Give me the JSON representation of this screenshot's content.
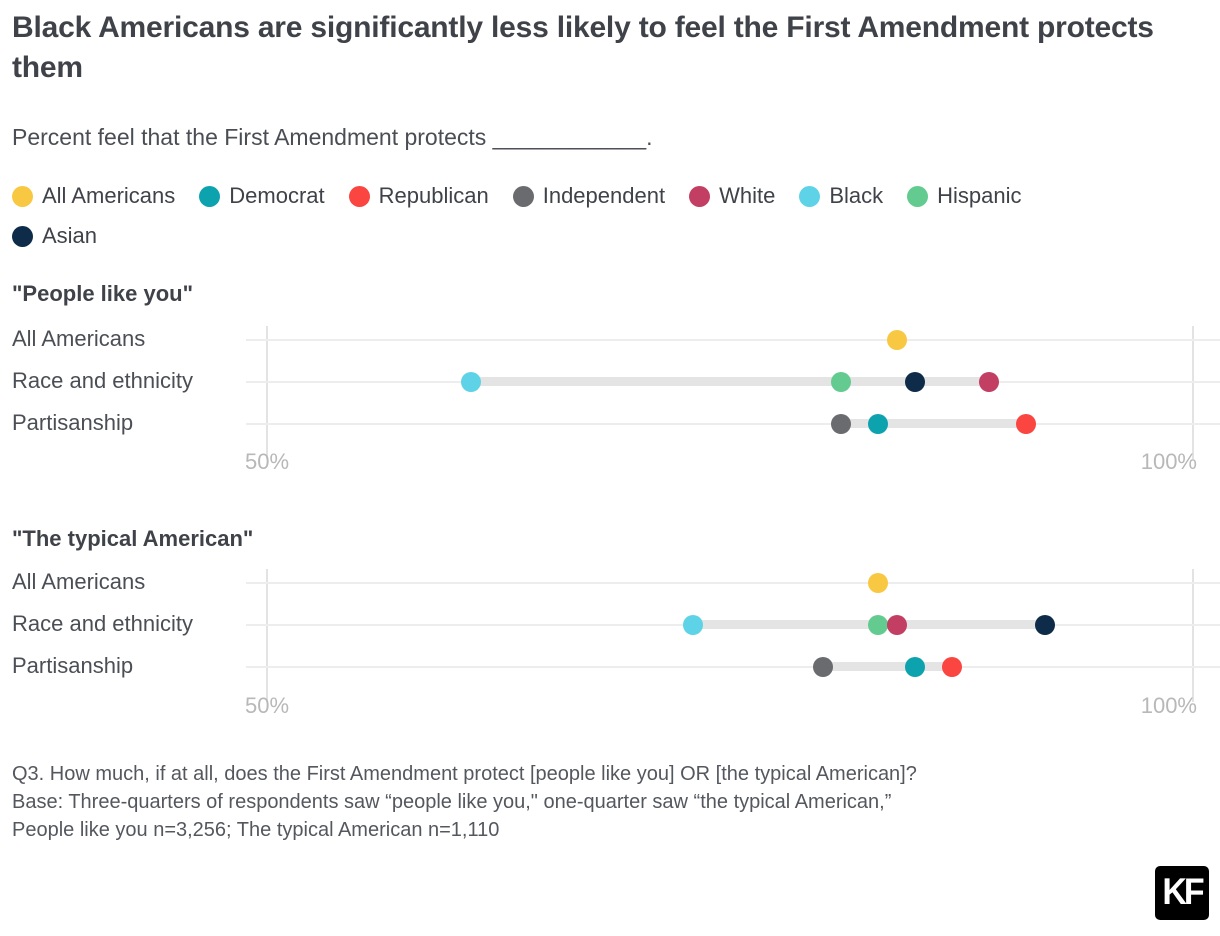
{
  "header": {
    "title": "Black Americans are significantly less likely to feel the First Amendment protects them",
    "subtitle": "Percent feel that the First Amendment protects ____________."
  },
  "legend": {
    "items": [
      {
        "name": "all-americans",
        "label": "All Americans",
        "color": "#F8C843"
      },
      {
        "name": "democrat",
        "label": "Democrat",
        "color": "#0CA3AE"
      },
      {
        "name": "republican",
        "label": "Republican",
        "color": "#FA4541"
      },
      {
        "name": "independent",
        "label": "Independent",
        "color": "#6A6B6E"
      },
      {
        "name": "white",
        "label": "White",
        "color": "#C23E63"
      },
      {
        "name": "black",
        "label": "Black",
        "color": "#5ED3E7"
      },
      {
        "name": "hispanic",
        "label": "Hispanic",
        "color": "#63CB8F"
      },
      {
        "name": "asian",
        "label": "Asian",
        "color": "#0E2C4A"
      }
    ]
  },
  "chart_data": {
    "type": "dot-plot",
    "xlim": [
      50,
      100
    ],
    "x_tick_labels": [
      "50%",
      "100%"
    ],
    "grid": "on",
    "group_colors": {
      "All Americans": "#F8C843",
      "Democrat": "#0CA3AE",
      "Republican": "#FA4541",
      "Independent": "#6A6B6E",
      "White": "#C23E63",
      "Black": "#5ED3E7",
      "Hispanic": "#63CB8F",
      "Asian": "#0E2C4A"
    },
    "sections": [
      {
        "title": "\"People like you\"",
        "rows": [
          {
            "label": "All Americans",
            "points": [
              {
                "group": "All Americans",
                "value": 84
              }
            ]
          },
          {
            "label": "Race and ethnicity",
            "range": [
              61,
              89
            ],
            "points": [
              {
                "group": "Black",
                "value": 61
              },
              {
                "group": "Hispanic",
                "value": 81
              },
              {
                "group": "Asian",
                "value": 85
              },
              {
                "group": "White",
                "value": 89
              }
            ]
          },
          {
            "label": "Partisanship",
            "range": [
              81,
              91
            ],
            "points": [
              {
                "group": "Independent",
                "value": 81
              },
              {
                "group": "Democrat",
                "value": 83
              },
              {
                "group": "Republican",
                "value": 91
              }
            ]
          }
        ]
      },
      {
        "title": "\"The typical American\"",
        "rows": [
          {
            "label": "All Americans",
            "points": [
              {
                "group": "All Americans",
                "value": 83
              }
            ]
          },
          {
            "label": "Race and ethnicity",
            "range": [
              73,
              92
            ],
            "points": [
              {
                "group": "Black",
                "value": 73
              },
              {
                "group": "Hispanic",
                "value": 83
              },
              {
                "group": "White",
                "value": 84
              },
              {
                "group": "Asian",
                "value": 92
              }
            ]
          },
          {
            "label": "Partisanship",
            "range": [
              80,
              87
            ],
            "points": [
              {
                "group": "Independent",
                "value": 80
              },
              {
                "group": "Democrat",
                "value": 85
              },
              {
                "group": "Republican",
                "value": 87
              }
            ]
          }
        ]
      }
    ]
  },
  "footer": {
    "line1": "Q3. How much, if at all, does the First Amendment protect [people like you] OR [the typical American]?",
    "line2": "Base: Three-quarters of respondents saw “people like you,\" one-quarter saw “the typical American,”",
    "line3": "People like you n=3,256; The typical American n=1,110",
    "logo_text": "KF"
  }
}
